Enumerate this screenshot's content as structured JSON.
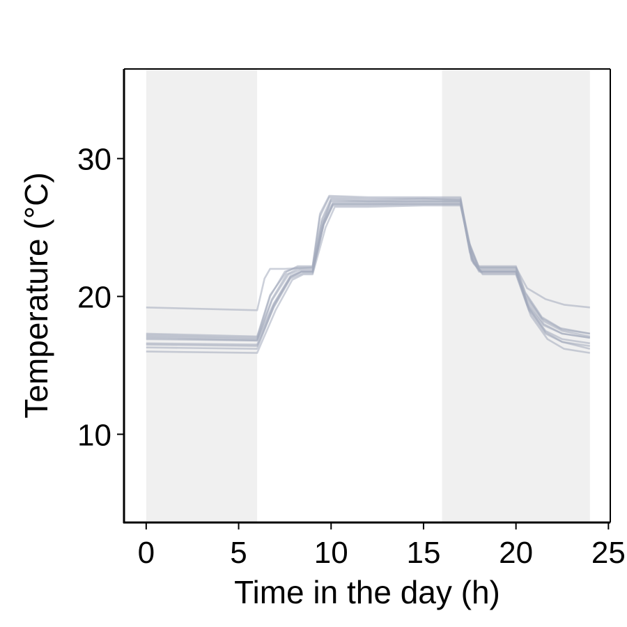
{
  "chart_data": {
    "type": "line",
    "title": "",
    "xlabel": "Time in the day (h)",
    "ylabel": "Temperature (°C)",
    "xlim": [
      -1.2,
      25.1
    ],
    "ylim": [
      3.6,
      36.5
    ],
    "xticks": [
      0,
      5,
      10,
      15,
      20,
      25
    ],
    "yticks": [
      10,
      20,
      30
    ],
    "xtick_labels": [
      "0",
      "5",
      "10",
      "15",
      "20",
      "25"
    ],
    "ytick_labels": [
      "10",
      "20",
      "30"
    ],
    "grid": false,
    "legend": "none",
    "shaded_periods": [
      {
        "start": 0,
        "end": 6
      },
      {
        "start": 16,
        "end": 24
      }
    ],
    "colors": {
      "series": "#a3aabb",
      "shade": "#f0f0f0",
      "axis": "#000000"
    },
    "series": [
      {
        "values": [
          [
            0,
            17.1
          ],
          [
            6,
            16.9
          ],
          [
            6.8,
            19.8
          ],
          [
            7.6,
            21.6
          ],
          [
            8.2,
            22.0
          ],
          [
            9.0,
            22.0
          ],
          [
            9.5,
            25.0
          ],
          [
            10.0,
            27.0
          ],
          [
            12,
            26.9
          ],
          [
            15,
            27.0
          ],
          [
            17.0,
            27.0
          ],
          [
            17.5,
            23.5
          ],
          [
            18,
            22.0
          ],
          [
            20.0,
            22.0
          ],
          [
            20.5,
            20.0
          ],
          [
            21.5,
            18.2
          ],
          [
            22.5,
            17.5
          ],
          [
            24,
            17.1
          ]
        ]
      },
      {
        "values": [
          [
            0,
            16.9
          ],
          [
            6,
            16.8
          ],
          [
            6.9,
            19.5
          ],
          [
            7.8,
            21.5
          ],
          [
            8.4,
            21.8
          ],
          [
            9.0,
            21.8
          ],
          [
            9.6,
            25.5
          ],
          [
            10.1,
            26.8
          ],
          [
            12,
            26.8
          ],
          [
            15,
            26.9
          ],
          [
            17.0,
            26.9
          ],
          [
            17.6,
            22.8
          ],
          [
            18,
            21.8
          ],
          [
            20.0,
            21.8
          ],
          [
            20.6,
            19.6
          ],
          [
            21.5,
            18.0
          ],
          [
            22.5,
            17.3
          ],
          [
            24,
            17.0
          ]
        ]
      },
      {
        "values": [
          [
            0,
            17.2
          ],
          [
            6,
            17.0
          ],
          [
            6.7,
            20.0
          ],
          [
            7.5,
            21.8
          ],
          [
            8.2,
            22.1
          ],
          [
            9.0,
            22.1
          ],
          [
            9.4,
            25.8
          ],
          [
            9.9,
            27.2
          ],
          [
            12,
            27.1
          ],
          [
            15,
            27.1
          ],
          [
            17.0,
            27.1
          ],
          [
            17.4,
            24.0
          ],
          [
            18,
            22.1
          ],
          [
            20.0,
            22.1
          ],
          [
            20.5,
            20.2
          ],
          [
            21.4,
            18.4
          ],
          [
            22.5,
            17.6
          ],
          [
            24,
            17.3
          ]
        ]
      },
      {
        "values": [
          [
            0,
            16.5
          ],
          [
            6,
            16.4
          ],
          [
            6.9,
            19.2
          ],
          [
            7.8,
            21.3
          ],
          [
            8.5,
            21.7
          ],
          [
            9.0,
            21.7
          ],
          [
            9.6,
            25.2
          ],
          [
            10.1,
            26.6
          ],
          [
            12,
            26.6
          ],
          [
            15,
            26.7
          ],
          [
            17.0,
            26.7
          ],
          [
            17.7,
            22.5
          ],
          [
            18.2,
            21.7
          ],
          [
            20.0,
            21.7
          ],
          [
            20.7,
            19.0
          ],
          [
            21.6,
            17.3
          ],
          [
            22.5,
            16.7
          ],
          [
            24,
            16.4
          ]
        ]
      },
      {
        "values": [
          [
            0,
            16.0
          ],
          [
            6,
            15.9
          ],
          [
            7.0,
            19.0
          ],
          [
            7.9,
            21.2
          ],
          [
            8.5,
            21.6
          ],
          [
            9.0,
            21.6
          ],
          [
            9.7,
            25.0
          ],
          [
            10.2,
            26.5
          ],
          [
            12,
            26.5
          ],
          [
            15,
            26.6
          ],
          [
            17.0,
            26.6
          ],
          [
            17.7,
            22.4
          ],
          [
            18.2,
            21.6
          ],
          [
            20.0,
            21.6
          ],
          [
            20.8,
            18.6
          ],
          [
            21.7,
            16.9
          ],
          [
            22.6,
            16.2
          ],
          [
            24,
            15.9
          ]
        ]
      },
      {
        "values": [
          [
            0,
            16.3
          ],
          [
            6,
            16.2
          ],
          [
            6.9,
            19.3
          ],
          [
            7.8,
            21.4
          ],
          [
            8.4,
            21.8
          ],
          [
            9.0,
            21.8
          ],
          [
            9.6,
            25.3
          ],
          [
            10.1,
            26.7
          ],
          [
            12,
            26.7
          ],
          [
            15,
            26.8
          ],
          [
            17.0,
            26.8
          ],
          [
            17.6,
            22.6
          ],
          [
            18.1,
            21.8
          ],
          [
            20.0,
            21.8
          ],
          [
            20.7,
            19.2
          ],
          [
            21.6,
            17.4
          ],
          [
            22.5,
            16.7
          ],
          [
            24,
            16.2
          ]
        ]
      },
      {
        "values": [
          [
            0,
            19.2
          ],
          [
            6,
            19.0
          ],
          [
            6.4,
            21.3
          ],
          [
            6.7,
            22.0
          ],
          [
            7.5,
            22.0
          ],
          [
            9.0,
            22.1
          ],
          [
            9.5,
            25.6
          ],
          [
            10.0,
            27.1
          ],
          [
            12,
            27.0
          ],
          [
            15,
            27.1
          ],
          [
            17.0,
            27.0
          ],
          [
            17.5,
            23.8
          ],
          [
            18,
            22.1
          ],
          [
            20.0,
            22.1
          ],
          [
            20.6,
            20.6
          ],
          [
            21.6,
            19.8
          ],
          [
            22.6,
            19.4
          ],
          [
            24,
            19.2
          ]
        ]
      },
      {
        "values": [
          [
            0,
            17.0
          ],
          [
            6,
            16.8
          ],
          [
            6.8,
            19.7
          ],
          [
            7.7,
            21.6
          ],
          [
            8.3,
            21.9
          ],
          [
            9.0,
            21.9
          ],
          [
            9.5,
            25.4
          ],
          [
            10.0,
            26.9
          ],
          [
            12,
            26.9
          ],
          [
            15,
            26.9
          ],
          [
            17.0,
            26.9
          ],
          [
            17.5,
            23.2
          ],
          [
            18,
            21.9
          ],
          [
            20.0,
            21.9
          ],
          [
            20.6,
            19.4
          ],
          [
            21.5,
            17.9
          ],
          [
            22.5,
            17.3
          ],
          [
            24,
            17.0
          ]
        ]
      },
      {
        "values": [
          [
            0,
            17.3
          ],
          [
            6,
            17.1
          ],
          [
            6.7,
            20.1
          ],
          [
            7.6,
            21.8
          ],
          [
            8.2,
            22.2
          ],
          [
            9.0,
            22.2
          ],
          [
            9.4,
            26.0
          ],
          [
            9.9,
            27.3
          ],
          [
            12,
            27.2
          ],
          [
            15,
            27.2
          ],
          [
            17.0,
            27.2
          ],
          [
            17.4,
            24.2
          ],
          [
            17.9,
            22.2
          ],
          [
            20.0,
            22.2
          ],
          [
            20.5,
            20.3
          ],
          [
            21.4,
            18.5
          ],
          [
            22.4,
            17.7
          ],
          [
            24,
            17.3
          ]
        ]
      },
      {
        "values": [
          [
            0,
            16.6
          ],
          [
            6,
            16.5
          ],
          [
            6.9,
            19.4
          ],
          [
            7.8,
            21.4
          ],
          [
            8.4,
            21.8
          ],
          [
            9.0,
            21.8
          ],
          [
            9.6,
            25.2
          ],
          [
            10.1,
            26.7
          ],
          [
            12,
            26.7
          ],
          [
            15,
            26.7
          ],
          [
            17.0,
            26.7
          ],
          [
            17.6,
            22.7
          ],
          [
            18.1,
            21.8
          ],
          [
            20.0,
            21.8
          ],
          [
            20.7,
            19.1
          ],
          [
            21.6,
            17.5
          ],
          [
            22.5,
            16.9
          ],
          [
            24,
            16.6
          ]
        ]
      }
    ]
  }
}
